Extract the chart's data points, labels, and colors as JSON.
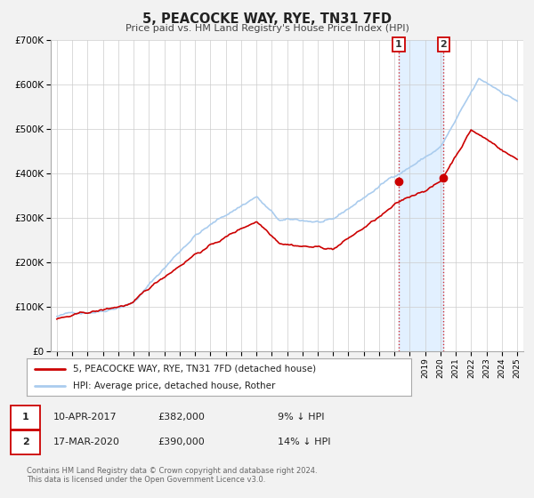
{
  "title": "5, PEACOCKE WAY, RYE, TN31 7FD",
  "subtitle": "Price paid vs. HM Land Registry's House Price Index (HPI)",
  "ylim": [
    0,
    700000
  ],
  "yticks": [
    0,
    100000,
    200000,
    300000,
    400000,
    500000,
    600000,
    700000
  ],
  "ytick_labels": [
    "£0",
    "£100K",
    "£200K",
    "£300K",
    "£400K",
    "£500K",
    "£600K",
    "£700K"
  ],
  "xlim_start": 1994.6,
  "xlim_end": 2025.4,
  "xticks": [
    1995,
    1996,
    1997,
    1998,
    1999,
    2000,
    2001,
    2002,
    2003,
    2004,
    2005,
    2006,
    2007,
    2008,
    2009,
    2010,
    2011,
    2012,
    2013,
    2014,
    2015,
    2016,
    2017,
    2018,
    2019,
    2020,
    2021,
    2022,
    2023,
    2024,
    2025
  ],
  "sale1_date": 2017.274,
  "sale1_price": 382000,
  "sale2_date": 2020.208,
  "sale2_price": 390000,
  "color_red": "#cc0000",
  "color_blue": "#aaccee",
  "color_blue_dark": "#7799bb",
  "background_color": "#f2f2f2",
  "plot_bg_color": "#ffffff",
  "grid_color": "#cccccc",
  "shade_color": "#ddeeff",
  "legend_label_red": "5, PEACOCKE WAY, RYE, TN31 7FD (detached house)",
  "legend_label_blue": "HPI: Average price, detached house, Rother",
  "annotation1_date": "10-APR-2017",
  "annotation1_price": "£382,000",
  "annotation1_hpi": "9% ↓ HPI",
  "annotation2_date": "17-MAR-2020",
  "annotation2_price": "£390,000",
  "annotation2_hpi": "14% ↓ HPI",
  "footer1": "Contains HM Land Registry data © Crown copyright and database right 2024.",
  "footer2": "This data is licensed under the Open Government Licence v3.0."
}
